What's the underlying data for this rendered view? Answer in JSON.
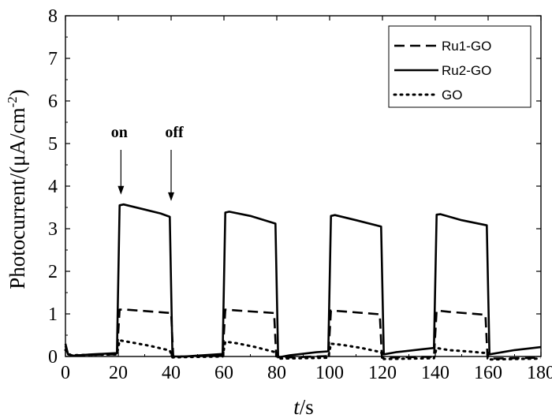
{
  "chart_data": {
    "type": "line",
    "xlabel": {
      "italic": "t",
      "rest": "/s"
    },
    "ylabel": {
      "main": "Photocurrent/(μA/cm",
      "sup": "-2",
      "close": ")"
    },
    "xlim": [
      0,
      180
    ],
    "ylim": [
      0,
      8
    ],
    "xticks": [
      0,
      20,
      40,
      60,
      80,
      100,
      120,
      140,
      160,
      180
    ],
    "yticks": [
      0,
      1,
      2,
      3,
      4,
      5,
      6,
      7,
      8
    ],
    "legend_position": "top-right",
    "annotations": [
      {
        "text": "on",
        "x": 21,
        "arrow_to_y": 3.8
      },
      {
        "text": "off",
        "x": 40,
        "arrow_to_y": 3.65
      }
    ],
    "series": [
      {
        "name": "Ru1-GO",
        "style": "dashed",
        "points": [
          [
            0,
            0.25
          ],
          [
            1,
            0.05
          ],
          [
            3,
            0.02
          ],
          [
            10,
            0.04
          ],
          [
            19.5,
            0.05
          ],
          [
            20.5,
            1.1
          ],
          [
            23,
            1.1
          ],
          [
            38,
            1.03
          ],
          [
            40,
            1.02
          ],
          [
            40.8,
            0.0
          ],
          [
            45,
            0.0
          ],
          [
            55,
            0.02
          ],
          [
            59.5,
            0.03
          ],
          [
            60.5,
            1.1
          ],
          [
            65,
            1.08
          ],
          [
            79,
            1.02
          ],
          [
            79.8,
            0.0
          ],
          [
            85,
            -0.02
          ],
          [
            95,
            0.0
          ],
          [
            99.5,
            0.01
          ],
          [
            100.5,
            1.08
          ],
          [
            105,
            1.06
          ],
          [
            119,
            0.99
          ],
          [
            119.8,
            -0.03
          ],
          [
            125,
            -0.02
          ],
          [
            135,
            -0.01
          ],
          [
            139.5,
            -0.01
          ],
          [
            140.5,
            1.08
          ],
          [
            145,
            1.05
          ],
          [
            159,
            0.98
          ],
          [
            159.8,
            -0.05
          ],
          [
            170,
            -0.04
          ],
          [
            180,
            -0.03
          ]
        ]
      },
      {
        "name": "Ru2-GO",
        "style": "solid",
        "points": [
          [
            0,
            0.3
          ],
          [
            1,
            0.05
          ],
          [
            3,
            0.02
          ],
          [
            10,
            0.05
          ],
          [
            19.5,
            0.08
          ],
          [
            20.5,
            3.55
          ],
          [
            22,
            3.57
          ],
          [
            30,
            3.45
          ],
          [
            36,
            3.36
          ],
          [
            39.5,
            3.28
          ],
          [
            40.5,
            0.0
          ],
          [
            45,
            0.0
          ],
          [
            55,
            0.04
          ],
          [
            59.5,
            0.06
          ],
          [
            60.5,
            3.38
          ],
          [
            62,
            3.4
          ],
          [
            70,
            3.3
          ],
          [
            79.5,
            3.12
          ],
          [
            80.5,
            -0.02
          ],
          [
            85,
            0.03
          ],
          [
            95,
            0.1
          ],
          [
            99.5,
            0.12
          ],
          [
            100.5,
            3.3
          ],
          [
            102,
            3.32
          ],
          [
            110,
            3.2
          ],
          [
            119.5,
            3.05
          ],
          [
            120.5,
            0.05
          ],
          [
            125,
            0.1
          ],
          [
            135,
            0.17
          ],
          [
            139.5,
            0.2
          ],
          [
            140.5,
            3.33
          ],
          [
            142,
            3.34
          ],
          [
            150,
            3.2
          ],
          [
            159.5,
            3.08
          ],
          [
            160.5,
            0.05
          ],
          [
            170,
            0.15
          ],
          [
            180,
            0.22
          ]
        ]
      },
      {
        "name": "GO",
        "style": "dotted",
        "points": [
          [
            0,
            0.15
          ],
          [
            2,
            0.03
          ],
          [
            10,
            0.04
          ],
          [
            19.5,
            0.05
          ],
          [
            20.5,
            0.38
          ],
          [
            25,
            0.33
          ],
          [
            32,
            0.25
          ],
          [
            39.5,
            0.14
          ],
          [
            40.5,
            -0.02
          ],
          [
            50,
            -0.01
          ],
          [
            59.5,
            0.0
          ],
          [
            60.5,
            0.35
          ],
          [
            65,
            0.31
          ],
          [
            72,
            0.22
          ],
          [
            79.5,
            0.1
          ],
          [
            80.5,
            -0.05
          ],
          [
            90,
            -0.04
          ],
          [
            99.5,
            -0.03
          ],
          [
            100.5,
            0.3
          ],
          [
            105,
            0.27
          ],
          [
            112,
            0.2
          ],
          [
            119.5,
            0.1
          ],
          [
            120.5,
            -0.06
          ],
          [
            130,
            -0.05
          ],
          [
            139.5,
            -0.04
          ],
          [
            140.5,
            0.2
          ],
          [
            145,
            0.15
          ],
          [
            152,
            0.12
          ],
          [
            159.5,
            0.08
          ],
          [
            160.5,
            -0.07
          ],
          [
            170,
            -0.06
          ],
          [
            180,
            -0.05
          ]
        ]
      }
    ]
  }
}
